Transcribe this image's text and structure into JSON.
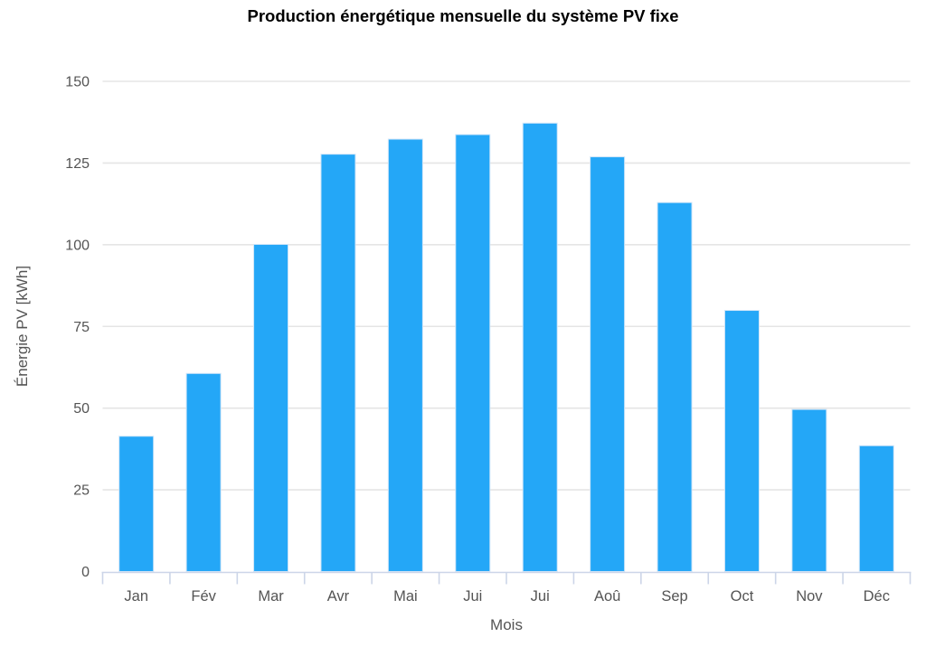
{
  "chart_data": {
    "type": "bar",
    "title": "Production énergétique mensuelle du système PV fixe",
    "xlabel": "Mois",
    "ylabel": "Énergie PV [kWh]",
    "categories": [
      "Jan",
      "Fév",
      "Mar",
      "Avr",
      "Mai",
      "Jui",
      "Jui",
      "Aoû",
      "Sep",
      "Oct",
      "Nov",
      "Déc"
    ],
    "values": [
      41.4,
      60.6,
      100.1,
      127.7,
      132.3,
      133.7,
      137.2,
      126.9,
      112.9,
      79.9,
      49.6,
      38.5
    ],
    "ylim": [
      0,
      150
    ],
    "yticks": [
      0,
      25,
      50,
      75,
      100,
      125,
      150
    ],
    "grid": true,
    "legend": "none",
    "colors": {
      "bar_fill": "#24a7f7",
      "bar_border": "#cfe5f8",
      "gridline": "#e5e5e5",
      "axis_line": "#ccd5e8",
      "tick_label": "#545454",
      "axis_title": "#545454",
      "title": "#000000",
      "background": "#ffffff"
    }
  }
}
